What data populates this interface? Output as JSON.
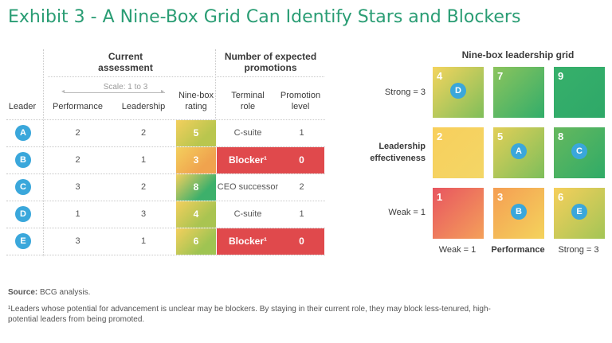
{
  "title": "Exhibit 3 - A Nine-Box Grid Can Identify Stars and Blockers",
  "table": {
    "group_current": [
      "Current",
      "assessment"
    ],
    "group_promotions": [
      "Number of expected",
      "promotions"
    ],
    "scale_label": "Scale: 1 to 3",
    "col_leader": "Leader",
    "col_performance": "Performance",
    "col_leadership": "Leadership",
    "col_ninebox": [
      "Nine-box",
      "rating"
    ],
    "col_terminal": [
      "Terminal",
      "role"
    ],
    "col_promotion": [
      "Promotion",
      "level"
    ]
  },
  "chart_data": [
    {
      "type": "table",
      "columns": [
        "Leader",
        "Performance",
        "Leadership",
        "Nine-box rating",
        "Terminal role",
        "Promotion level"
      ],
      "rows": [
        {
          "leader": "A",
          "performance": "2",
          "leadership": "2",
          "ninebox": "5",
          "role": "C-suite",
          "level": "1",
          "blocker": false,
          "color": "#b9c64e"
        },
        {
          "leader": "B",
          "performance": "2",
          "leadership": "1",
          "ninebox": "3",
          "role": "Blocker¹",
          "level": "0",
          "blocker": true,
          "color": "#f0a34e"
        },
        {
          "leader": "C",
          "performance": "3",
          "leadership": "2",
          "ninebox": "8",
          "role": "CEO successor",
          "level": "2",
          "blocker": false,
          "color": "#3db06b"
        },
        {
          "leader": "D",
          "performance": "1",
          "leadership": "3",
          "ninebox": "4",
          "role": "C-suite",
          "level": "1",
          "blocker": false,
          "color": "#a9c451"
        },
        {
          "leader": "E",
          "performance": "3",
          "leadership": "1",
          "ninebox": "6",
          "role": "Blocker¹",
          "level": "0",
          "blocker": true,
          "color": "#9fc452"
        }
      ]
    },
    {
      "type": "heatmap",
      "title": "Nine-box leadership grid",
      "xlabel": "Performance",
      "ylabel": [
        "Leadership",
        "effectiveness"
      ],
      "x_ticks": [
        "Weak = 1",
        "Strong = 3"
      ],
      "y_ticks": [
        "Strong = 3",
        "Weak = 1"
      ],
      "boxes": [
        {
          "perf": 1,
          "lead": 3,
          "num": "4",
          "leaders": [
            "D"
          ],
          "from": "#f4d45e",
          "to": "#7fbe5a"
        },
        {
          "perf": 2,
          "lead": 3,
          "num": "7",
          "leaders": [],
          "from": "#8cc45d",
          "to": "#32ad6a"
        },
        {
          "perf": 3,
          "lead": 3,
          "num": "9",
          "leaders": [],
          "from": "#37b06b",
          "to": "#2ea868"
        },
        {
          "perf": 1,
          "lead": 2,
          "num": "2",
          "leaders": [],
          "from": "#f8cf5c",
          "to": "#f3d666"
        },
        {
          "perf": 2,
          "lead": 2,
          "num": "5",
          "leaders": [
            "A"
          ],
          "from": "#e2cf58",
          "to": "#7dbe5a"
        },
        {
          "perf": 3,
          "lead": 2,
          "num": "8",
          "leaders": [
            "C"
          ],
          "from": "#66b85e",
          "to": "#2fab67"
        },
        {
          "perf": 1,
          "lead": 1,
          "num": "1",
          "leaders": [],
          "from": "#e85560",
          "to": "#f4a05a"
        },
        {
          "perf": 2,
          "lead": 1,
          "num": "3",
          "leaders": [
            "B"
          ],
          "from": "#f59e53",
          "to": "#f4d35c"
        },
        {
          "perf": 3,
          "lead": 1,
          "num": "6",
          "leaders": [
            "E"
          ],
          "from": "#f6cf5b",
          "to": "#a3c556"
        }
      ]
    }
  ],
  "footer": {
    "source_label": "Source:",
    "source_text": " BCG analysis.",
    "note": "¹Leaders whose potential for advancement is unclear may be blockers. By staying in their current role, they may block less-tenured, high-potential leaders from being promoted."
  }
}
